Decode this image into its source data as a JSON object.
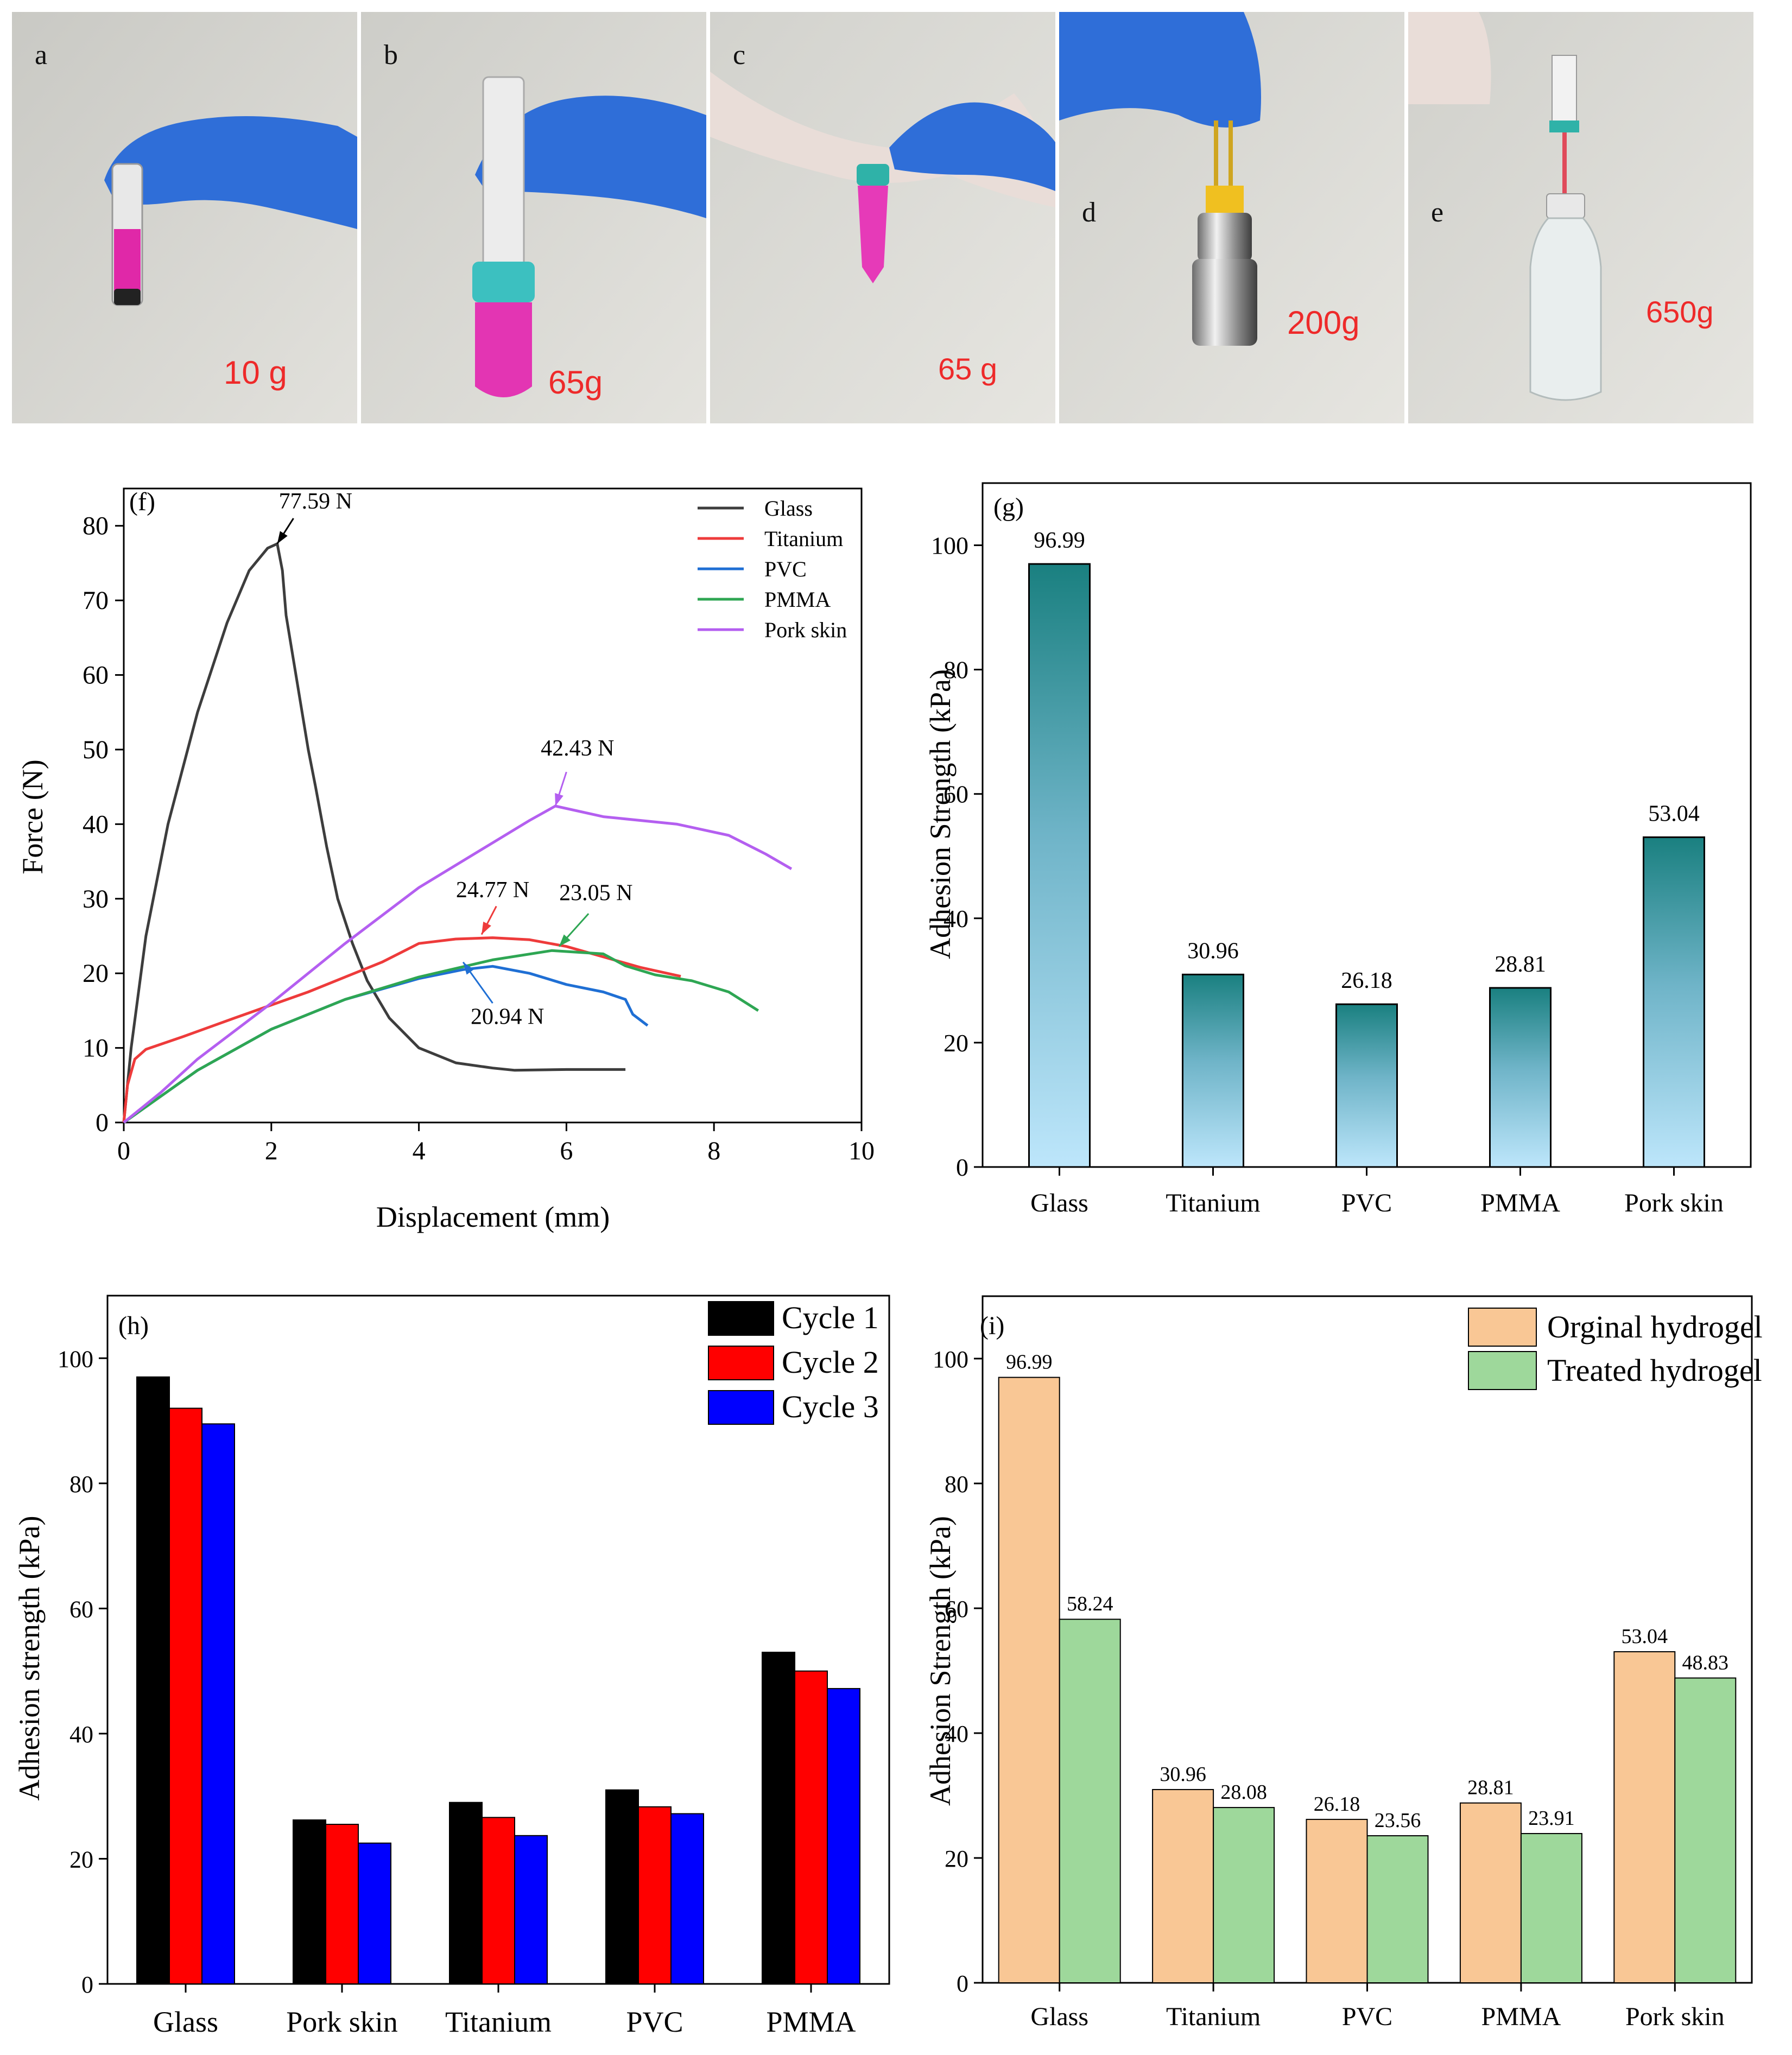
{
  "photos": [
    {
      "label": "a",
      "weight": "10 g"
    },
    {
      "label": "b",
      "weight": "65g"
    },
    {
      "label": "c",
      "weight": "65 g"
    },
    {
      "label": "d",
      "weight": "200g"
    },
    {
      "label": "e",
      "weight": "650g"
    }
  ],
  "colors": {
    "glass": "#3d3d3d",
    "titanium": "#ee3b3b",
    "pvc": "#1f6fd4",
    "pmma": "#2ea653",
    "pork": "#b45ff0",
    "teal": "#1a8080",
    "lightblue": "#bde6fb",
    "cycle1": "#000000",
    "cycle2": "#ff0000",
    "cycle3": "#0000ff",
    "orig": "#f9c795",
    "treated": "#9ed89b",
    "ink": "#ee2a2a"
  },
  "chart_data": [
    {
      "id": "f",
      "type": "line",
      "panel_label": "(f)",
      "xlabel": "Displacement (mm)",
      "ylabel": "Force (N)",
      "xlim": [
        0,
        10
      ],
      "ylim": [
        0,
        85
      ],
      "xticks": [
        0,
        2,
        4,
        6,
        8,
        10
      ],
      "yticks": [
        0,
        10,
        20,
        30,
        40,
        50,
        60,
        70,
        80
      ],
      "series": [
        {
          "name": "Glass",
          "color": "#3d3d3d",
          "points": [
            [
              0,
              0
            ],
            [
              0.1,
              10
            ],
            [
              0.3,
              25
            ],
            [
              0.6,
              40
            ],
            [
              1.0,
              55
            ],
            [
              1.4,
              67
            ],
            [
              1.7,
              74
            ],
            [
              1.95,
              77
            ],
            [
              2.08,
              77.59
            ],
            [
              2.15,
              74
            ],
            [
              2.2,
              68
            ],
            [
              2.3,
              62
            ],
            [
              2.4,
              56
            ],
            [
              2.5,
              50
            ],
            [
              2.6,
              45
            ],
            [
              2.75,
              37
            ],
            [
              2.9,
              30
            ],
            [
              3.1,
              24
            ],
            [
              3.3,
              19
            ],
            [
              3.6,
              14
            ],
            [
              4.0,
              10
            ],
            [
              4.5,
              8
            ],
            [
              5.0,
              7.3
            ],
            [
              5.3,
              7
            ],
            [
              6.0,
              7.1
            ],
            [
              6.8,
              7.1
            ]
          ]
        },
        {
          "name": "Titanium",
          "color": "#ee3b3b",
          "points": [
            [
              0,
              0
            ],
            [
              0.05,
              5
            ],
            [
              0.15,
              8.5
            ],
            [
              0.3,
              9.8
            ],
            [
              0.8,
              11.5
            ],
            [
              1.5,
              14
            ],
            [
              2.5,
              17.5
            ],
            [
              3.5,
              21.5
            ],
            [
              4.0,
              24
            ],
            [
              4.5,
              24.6
            ],
            [
              5.0,
              24.77
            ],
            [
              5.5,
              24.5
            ],
            [
              6.0,
              23.6
            ],
            [
              6.5,
              22.2
            ],
            [
              7.0,
              20.8
            ],
            [
              7.55,
              19.6
            ]
          ]
        },
        {
          "name": "PVC",
          "color": "#1f6fd4",
          "points": [
            [
              0,
              0
            ],
            [
              1.0,
              7
            ],
            [
              2.0,
              12.5
            ],
            [
              3.0,
              16.5
            ],
            [
              4.0,
              19.3
            ],
            [
              4.6,
              20.5
            ],
            [
              5.0,
              20.94
            ],
            [
              5.5,
              20
            ],
            [
              6.0,
              18.5
            ],
            [
              6.5,
              17.5
            ],
            [
              6.8,
              16.5
            ],
            [
              6.9,
              14.5
            ],
            [
              7.1,
              13
            ]
          ]
        },
        {
          "name": "PMMA",
          "color": "#2ea653",
          "points": [
            [
              0,
              0
            ],
            [
              1.0,
              7
            ],
            [
              2.0,
              12.5
            ],
            [
              3.0,
              16.5
            ],
            [
              4.0,
              19.5
            ],
            [
              5.0,
              21.8
            ],
            [
              5.8,
              23.05
            ],
            [
              6.5,
              22.6
            ],
            [
              6.8,
              21
            ],
            [
              7.2,
              19.8
            ],
            [
              7.7,
              19
            ],
            [
              8.2,
              17.5
            ],
            [
              8.6,
              15
            ]
          ]
        },
        {
          "name": "Pork skin",
          "color": "#b45ff0",
          "points": [
            [
              0,
              0
            ],
            [
              0.5,
              4
            ],
            [
              1.0,
              8.5
            ],
            [
              2.0,
              16
            ],
            [
              3.0,
              24
            ],
            [
              4.0,
              31.5
            ],
            [
              5.0,
              37.5
            ],
            [
              5.5,
              40.5
            ],
            [
              5.85,
              42.43
            ],
            [
              6.5,
              41
            ],
            [
              7.5,
              40
            ],
            [
              8.2,
              38.5
            ],
            [
              8.7,
              36
            ],
            [
              9.05,
              34
            ]
          ]
        }
      ],
      "annotations": [
        {
          "text": "77.59 N",
          "x": 2.08,
          "y": 77.59,
          "color": "#000000",
          "tx": 2.6,
          "ty": 82.3,
          "ax": 2.3,
          "ay": 81
        },
        {
          "text": "42.43 N",
          "x": 5.85,
          "y": 42.43,
          "color": "#b45ff0",
          "tx": 6.15,
          "ty": 49.2,
          "ax": 6.0,
          "ay": 47
        },
        {
          "text": "24.77 N",
          "x": 4.85,
          "y": 25.2,
          "color": "#ee3b3b",
          "tx": 5.0,
          "ty": 30.2,
          "ax": 5.05,
          "ay": 29
        },
        {
          "text": "23.05 N",
          "x": 5.9,
          "y": 23.6,
          "color": "#2ea653",
          "tx": 6.4,
          "ty": 29.8,
          "ax": 6.3,
          "ay": 28
        },
        {
          "text": "20.94 N",
          "x": 4.6,
          "y": 21.5,
          "color": "#1f6fd4",
          "tx": 5.2,
          "ty": 13.2,
          "ax": 5.0,
          "ay": 16
        }
      ],
      "legend": "top-right"
    },
    {
      "id": "g",
      "type": "bar",
      "panel_label": "(g)",
      "xlabel": "",
      "ylabel": "Adhesion Strength (kPa)",
      "ylim": [
        0,
        110
      ],
      "yticks": [
        0,
        20,
        40,
        60,
        80,
        100
      ],
      "categories": [
        "Glass",
        "Titanium",
        "PVC",
        "PMMA",
        "Pork skin"
      ],
      "values": [
        96.99,
        30.96,
        26.18,
        28.81,
        53.04
      ],
      "value_labels": [
        "96.99",
        "30.96",
        "26.18",
        "28.81",
        "53.04"
      ],
      "fill": "gradient teal to light blue"
    },
    {
      "id": "h",
      "type": "bar",
      "panel_label": "(h)",
      "xlabel": "",
      "ylabel": "Adhesion strength (kPa)",
      "ylim": [
        0,
        110
      ],
      "yticks": [
        0,
        20,
        40,
        60,
        80,
        100
      ],
      "categories": [
        "Glass",
        "Pork skin",
        "Titanium",
        "PVC",
        "PMMA"
      ],
      "series": [
        {
          "name": "Cycle 1",
          "color": "#000000",
          "values": [
            97.0,
            26.2,
            29.0,
            31.0,
            53.0
          ]
        },
        {
          "name": "Cycle 2",
          "color": "#ff0000",
          "values": [
            92.0,
            25.5,
            26.6,
            28.3,
            50.0
          ]
        },
        {
          "name": "Cycle 3",
          "color": "#0000ff",
          "values": [
            89.5,
            22.5,
            23.7,
            27.2,
            47.2
          ]
        }
      ],
      "legend": "top-right"
    },
    {
      "id": "i",
      "type": "bar",
      "panel_label": "(i)",
      "xlabel": "",
      "ylabel": "Adhesion Strength (kPa)",
      "ylim": [
        0,
        110
      ],
      "yticks": [
        0,
        20,
        40,
        60,
        80,
        100
      ],
      "categories": [
        "Glass",
        "Titanium",
        "PVC",
        "PMMA",
        "Pork skin"
      ],
      "series": [
        {
          "name": "Orginal hydrogel",
          "color": "#f9c795",
          "values": [
            96.99,
            30.96,
            26.18,
            28.81,
            53.04
          ],
          "labels": [
            "96.99",
            "30.96",
            "26.18",
            "28.81",
            "53.04"
          ]
        },
        {
          "name": "Treated hydrogel",
          "color": "#9ed89b",
          "values": [
            58.24,
            28.08,
            23.56,
            23.91,
            48.83
          ],
          "labels": [
            "58.24",
            "28.08",
            "23.56",
            "23.91",
            "48.83"
          ]
        }
      ],
      "legend": "top-right"
    }
  ]
}
